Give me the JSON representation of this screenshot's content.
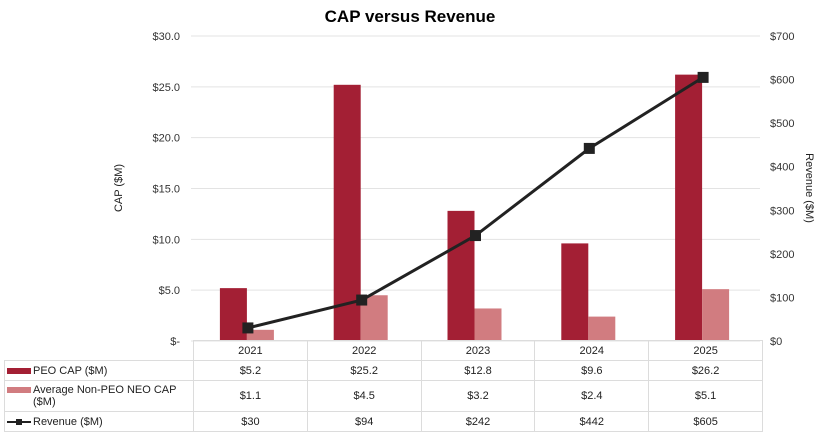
{
  "chart_data": {
    "type": "bar",
    "title": "CAP versus Revenue",
    "categories": [
      "2021",
      "2022",
      "2023",
      "2024",
      "2025"
    ],
    "series": [
      {
        "name": "PEO CAP ($M)",
        "type": "bar",
        "axis": "left",
        "color": "#a31f34",
        "values": [
          5.2,
          25.2,
          12.8,
          9.6,
          26.2
        ],
        "labels": [
          "$5.2",
          "$25.2",
          "$12.8",
          "$9.6",
          "$26.2"
        ]
      },
      {
        "name": "Average Non-PEO NEO CAP ($M)",
        "type": "bar",
        "axis": "left",
        "color": "#d17c80",
        "values": [
          1.1,
          4.5,
          3.2,
          2.4,
          5.1
        ],
        "labels": [
          "$1.1",
          "$4.5",
          "$3.2",
          "$2.4",
          "$5.1"
        ]
      },
      {
        "name": "Revenue ($M)",
        "type": "line",
        "axis": "right",
        "color": "#222222",
        "marker": "square",
        "values": [
          30,
          94,
          242,
          442,
          605
        ],
        "labels": [
          "$30",
          "$94",
          "$242",
          "$442",
          "$605"
        ]
      }
    ],
    "ylabel": "CAP ($M)",
    "y2label": "Revenue ($M)",
    "ylim": [
      0,
      30
    ],
    "y2lim": [
      0,
      700
    ],
    "yticks": [
      0,
      5,
      10,
      15,
      20,
      25,
      30
    ],
    "yticklabels": [
      "$-",
      "$5.0",
      "$10.0",
      "$15.0",
      "$20.0",
      "$25.0",
      "$30.0"
    ],
    "y2ticks": [
      0,
      100,
      200,
      300,
      400,
      500,
      600,
      700
    ],
    "y2ticklabels": [
      "$0",
      "$100",
      "$200",
      "$300",
      "$400",
      "$500",
      "$600",
      "$700"
    ],
    "grid": true,
    "legend": "data-table-below"
  }
}
